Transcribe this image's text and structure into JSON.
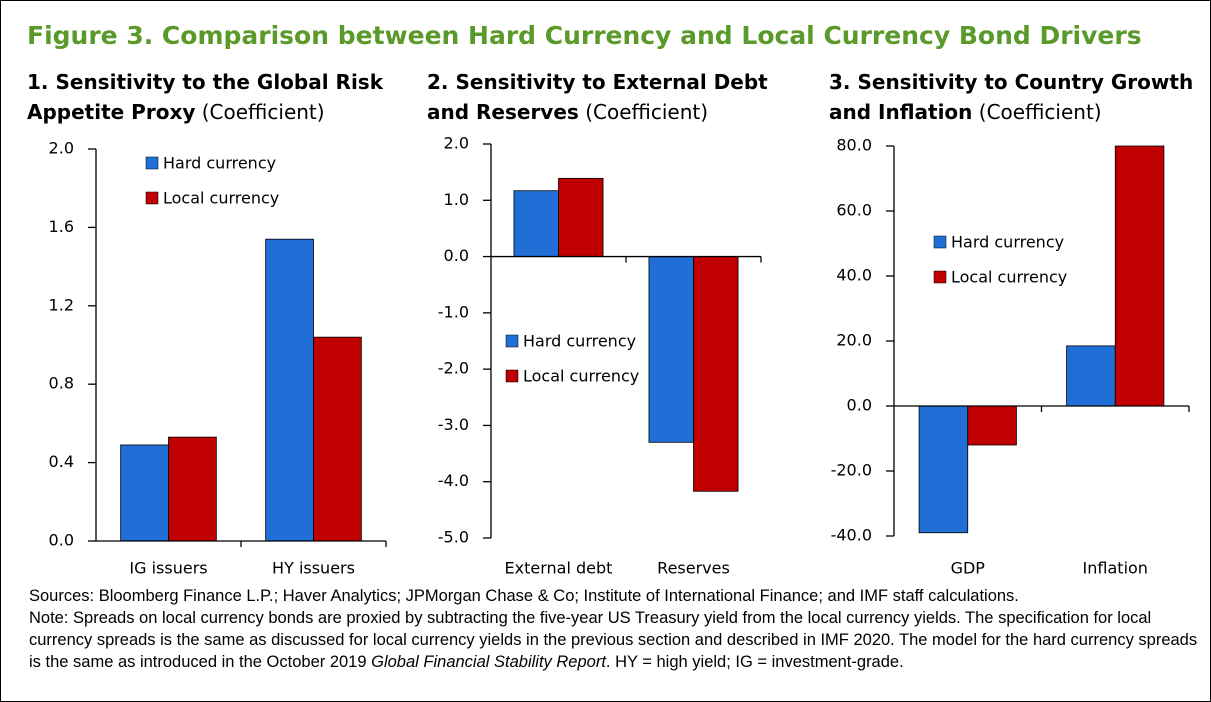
{
  "title": "Figure 3. Comparison between Hard Currency and Local Currency Bond Drivers",
  "chart_data": [
    {
      "type": "bar",
      "title": "1. Sensitivity to the Global Risk Appetite Proxy",
      "subtitle": "(Coefficient)",
      "categories": [
        "IG issuers",
        "HY issuers"
      ],
      "series": [
        {
          "name": "Hard currency",
          "color": "#1f6fd6",
          "values": [
            0.49,
            1.54
          ]
        },
        {
          "name": "Local currency",
          "color": "#c00000",
          "values": [
            0.53,
            1.04
          ]
        }
      ],
      "ylim": [
        0,
        2
      ],
      "yticks": [
        {
          "value": 0,
          "label": "0.0"
        },
        {
          "value": 0.4,
          "label": "0.4"
        },
        {
          "value": 0.8,
          "label": "0.8"
        },
        {
          "value": 1.2,
          "label": "1.2"
        },
        {
          "value": 1.6,
          "label": "1.6"
        },
        {
          "value": 2,
          "label": "2.0"
        }
      ],
      "legend": "upper left",
      "grid": false
    },
    {
      "type": "bar",
      "title": "2. Sensitivity to External Debt and Reserves",
      "subtitle": "(Coefficient)",
      "categories": [
        "External debt",
        "Reserves"
      ],
      "series": [
        {
          "name": "Hard currency",
          "color": "#1f6fd6",
          "values": [
            1.17,
            -3.3
          ]
        },
        {
          "name": "Local currency",
          "color": "#c00000",
          "values": [
            1.39,
            -4.17
          ]
        }
      ],
      "ylim": [
        -5,
        2
      ],
      "yticks": [
        {
          "value": -5,
          "label": "-5.0"
        },
        {
          "value": -4,
          "label": "-4.0"
        },
        {
          "value": -3,
          "label": "-3.0"
        },
        {
          "value": -2,
          "label": "-2.0"
        },
        {
          "value": -1,
          "label": "-1.0"
        },
        {
          "value": 0,
          "label": "0.0"
        },
        {
          "value": 1,
          "label": "1.0"
        },
        {
          "value": 2,
          "label": "2.0"
        }
      ],
      "legend": "center left",
      "grid": false
    },
    {
      "type": "bar",
      "title": "3. Sensitivity to Country Growth and Inflation",
      "subtitle": "(Coefficient)",
      "categories": [
        "GDP",
        "Inflation"
      ],
      "series": [
        {
          "name": "Hard currency",
          "color": "#1f6fd6",
          "values": [
            -39,
            18.5
          ]
        },
        {
          "name": "Local currency",
          "color": "#c00000",
          "values": [
            -12,
            80
          ]
        }
      ],
      "ylim": [
        -40,
        80
      ],
      "yticks": [
        {
          "value": -40,
          "label": "-40.0"
        },
        {
          "value": -20,
          "label": "-20.0"
        },
        {
          "value": 0,
          "label": "0.0"
        },
        {
          "value": 20,
          "label": "20.0"
        },
        {
          "value": 40,
          "label": "40.0"
        },
        {
          "value": 60,
          "label": "60.0"
        },
        {
          "value": 80,
          "label": "80.0"
        }
      ],
      "legend": "upper left",
      "grid": false
    }
  ],
  "sources": "Sources: Bloomberg Finance L.P.; Haver Analytics; JPMorgan Chase & Co; Institute of International Finance; and IMF staff calculations.",
  "note": [
    "Note: Spreads on local currency bonds are proxied by subtracting the five-year US Treasury yield from the local currency yields. The specification for local currency spreads is the same as discussed for local currency yields in the previous section and described in IMF 2020. The model for the hard currency spreads is the same as introduced in the October 2019 ",
    "Global Financial Stability Report",
    ". HY = high yield; IG = investment-grade."
  ]
}
